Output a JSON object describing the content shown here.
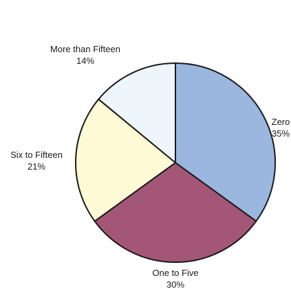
{
  "chart_data": {
    "type": "pie",
    "title": "",
    "start_angle_deg": 90,
    "direction": "clockwise",
    "slices": [
      {
        "label": "Zero",
        "value": 35,
        "value_label": "35%",
        "color": "#9bb7e0"
      },
      {
        "label": "One to Five",
        "value": 30,
        "value_label": "30%",
        "color": "#a45677"
      },
      {
        "label": "Six to Fifteen",
        "value": 21,
        "value_label": "21%",
        "color": "#fefad6"
      },
      {
        "label": "More than Fifteen",
        "value": 14,
        "value_label": "14%",
        "color": "#eef6fc"
      }
    ],
    "outline_color": "#1a1a1a"
  }
}
